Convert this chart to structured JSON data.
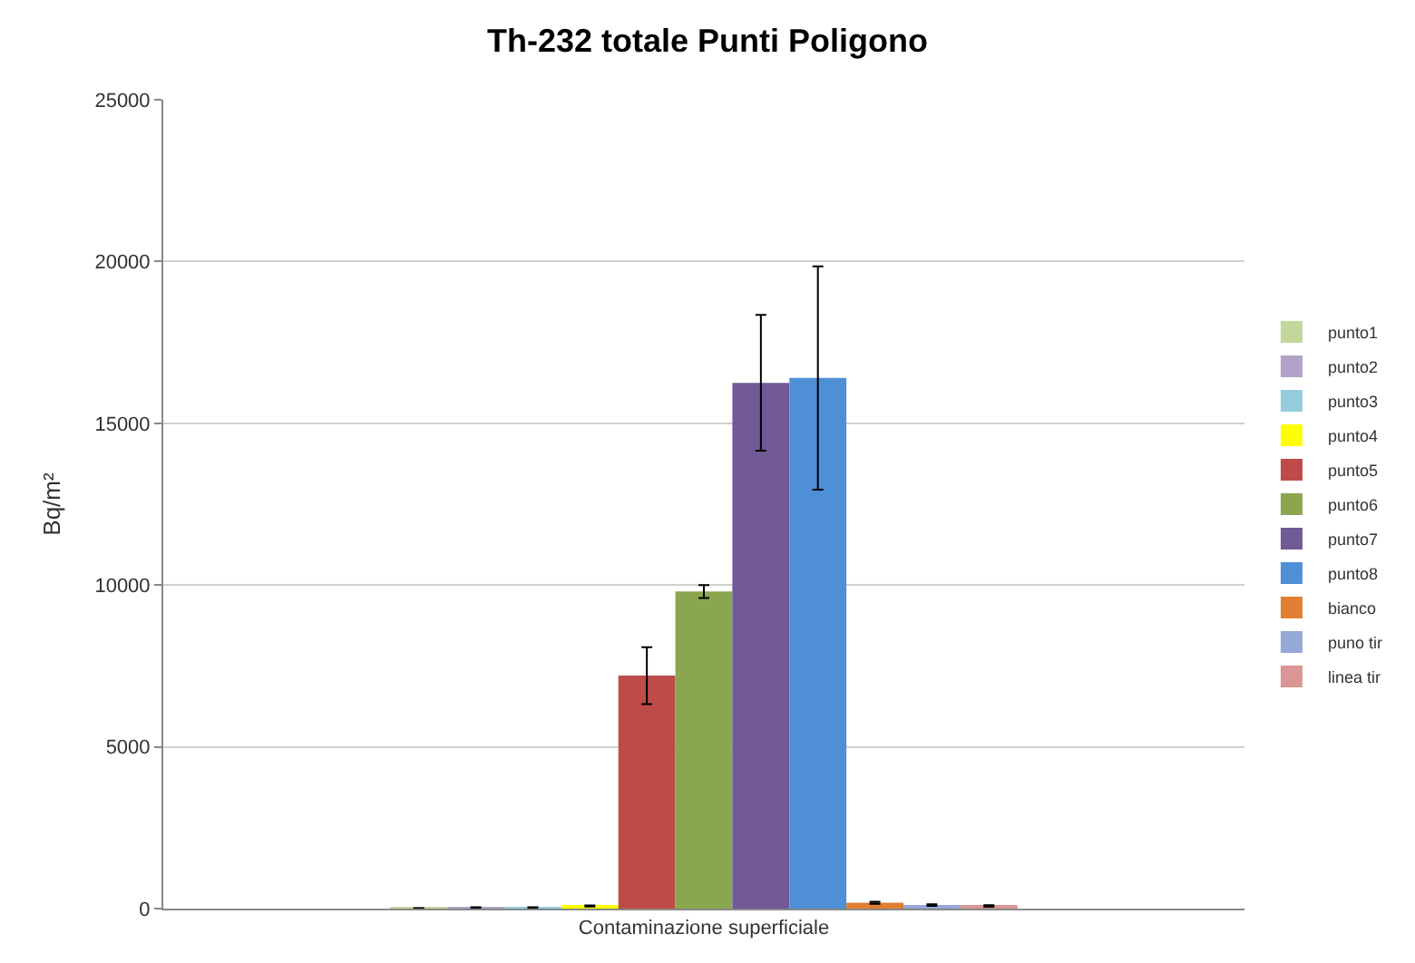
{
  "chart_data": {
    "type": "bar",
    "title": "Th-232 totale Punti Poligono",
    "ylabel": "Bq/m²",
    "categories": [
      "Contaminazione superficiale"
    ],
    "ylim": [
      0,
      25000
    ],
    "yticks": [
      0,
      5000,
      10000,
      15000,
      20000,
      25000
    ],
    "grid": "y",
    "legend": "right",
    "series": [
      {
        "name": "punto1",
        "color": "#c3d69b",
        "values": [
          10
        ],
        "errors": [
          5
        ]
      },
      {
        "name": "punto2",
        "color": "#b2a2c7",
        "values": [
          30
        ],
        "errors": [
          15
        ]
      },
      {
        "name": "punto3",
        "color": "#93cddd",
        "values": [
          30
        ],
        "errors": [
          15
        ]
      },
      {
        "name": "punto4",
        "color": "#ffff00",
        "values": [
          80
        ],
        "errors": [
          20
        ]
      },
      {
        "name": "punto5",
        "color": "#be4b48",
        "values": [
          7200
        ],
        "errors": [
          880
        ]
      },
      {
        "name": "punto6",
        "color": "#8aa74f",
        "values": [
          9800
        ],
        "errors": [
          200
        ]
      },
      {
        "name": "punto7",
        "color": "#715a97",
        "values": [
          16250
        ],
        "errors": [
          2100
        ]
      },
      {
        "name": "punto8",
        "color": "#4f8fd6",
        "values": [
          16400
        ],
        "errors": [
          3450
        ]
      },
      {
        "name": "bianco",
        "color": "#e07f34",
        "values": [
          180
        ],
        "errors": [
          30
        ]
      },
      {
        "name": "puno tir",
        "color": "#95a8d8",
        "values": [
          110
        ],
        "errors": [
          25
        ]
      },
      {
        "name": "linea tir",
        "color": "#d99694",
        "values": [
          80
        ],
        "errors": [
          25
        ]
      }
    ]
  }
}
